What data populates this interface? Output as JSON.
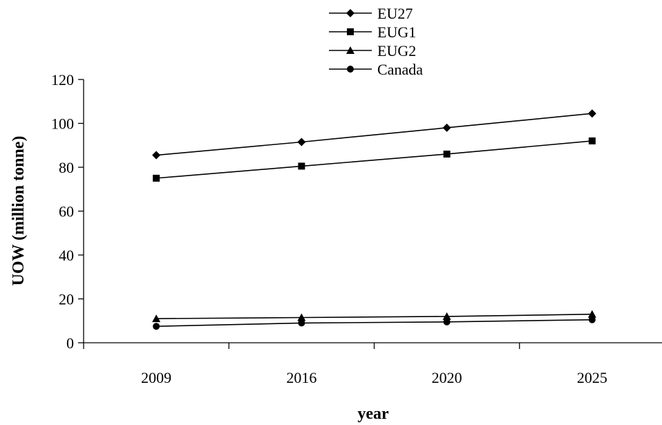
{
  "chart_data": {
    "type": "line",
    "title": "",
    "xlabel": "year",
    "ylabel": "UOW (million tonne)",
    "categories": [
      "2009",
      "2016",
      "2020",
      "2025"
    ],
    "ylim": [
      0,
      120
    ],
    "yticks": [
      "0",
      "20",
      "40",
      "60",
      "80",
      "100",
      "120"
    ],
    "grid": false,
    "legend_position": "top-center",
    "series": [
      {
        "name": "EU27",
        "marker": "diamond",
        "values": [
          85.5,
          91.5,
          98,
          104.5
        ]
      },
      {
        "name": "EUG1",
        "marker": "square",
        "values": [
          75,
          80.5,
          86,
          92
        ]
      },
      {
        "name": "EUG2",
        "marker": "triangle",
        "values": [
          11,
          11.5,
          12,
          13
        ]
      },
      {
        "name": "Canada",
        "marker": "circle",
        "values": [
          7.5,
          9,
          9.5,
          10.5
        ]
      }
    ],
    "line_color": "#000000"
  }
}
